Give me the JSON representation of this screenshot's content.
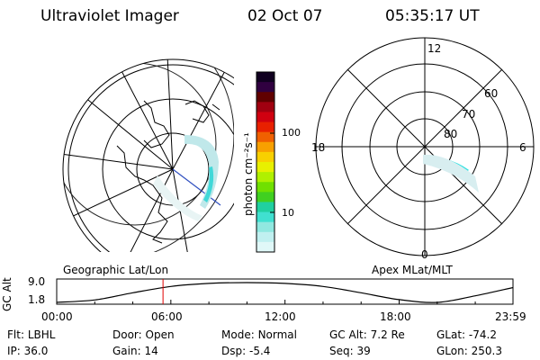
{
  "header": {
    "instrument": "Ultraviolet Imager",
    "date": "02 Oct 07",
    "time": "05:35:17 UT"
  },
  "left_panel": {
    "label": "Geographic Lat/Lon"
  },
  "right_panel": {
    "label": "Apex MLat/MLT",
    "mlt_labels": [
      "12",
      "18",
      "6",
      "0"
    ],
    "mlat_labels": [
      "60",
      "70",
      "80"
    ]
  },
  "colorbar": {
    "unit_label": "photon cm⁻²s⁻¹",
    "ticks": [
      "100",
      "10"
    ],
    "colors": [
      "#100020",
      "#300040",
      "#600000",
      "#a00010",
      "#d00010",
      "#e82000",
      "#f06000",
      "#f8a000",
      "#f8d000",
      "#e8f000",
      "#b0f000",
      "#70e000",
      "#40d020",
      "#20d0a0",
      "#40e0d0",
      "#90e8e0",
      "#c0f0f0",
      "#e0f8f8"
    ]
  },
  "chart_data": {
    "type": "line",
    "title": "",
    "ylabel": "GC Alt",
    "ylim": [
      1.8,
      9.0
    ],
    "yticks": [
      "9.0",
      "1.8"
    ],
    "xticks": [
      "00:00",
      "06:00",
      "12:00",
      "18:00",
      "23:59"
    ],
    "x": [
      "00:00",
      "02:00",
      "04:00",
      "06:00",
      "08:00",
      "10:00",
      "12:00",
      "14:00",
      "16:00",
      "18:00",
      "20:00",
      "22:00",
      "23:59"
    ],
    "series": [
      {
        "values": [
          1.8,
          2.7,
          5.3,
          7.6,
          8.7,
          9.0,
          8.7,
          7.6,
          5.3,
          2.8,
          1.8,
          4.2,
          7.2
        ]
      }
    ],
    "current_time": "05:35:17",
    "current_time_color": "#e00000",
    "grid": false
  },
  "footer": {
    "rows": [
      [
        {
          "key": "Flt:",
          "val": "LBHL"
        },
        {
          "key": "Door:",
          "val": "Open"
        },
        {
          "key": "Mode:",
          "val": "Normal"
        },
        {
          "key": "GC Alt:",
          "val": "7.2 Re"
        },
        {
          "key": "GLat:",
          "val": "-74.2"
        }
      ],
      [
        {
          "key": "IP:",
          "val": "36.0"
        },
        {
          "key": "Gain:",
          "val": "14"
        },
        {
          "key": "Dsp:",
          "val": "-5.4"
        },
        {
          "key": "Seq:",
          "val": "39"
        },
        {
          "key": "GLon:",
          "val": "250.3"
        }
      ]
    ]
  }
}
